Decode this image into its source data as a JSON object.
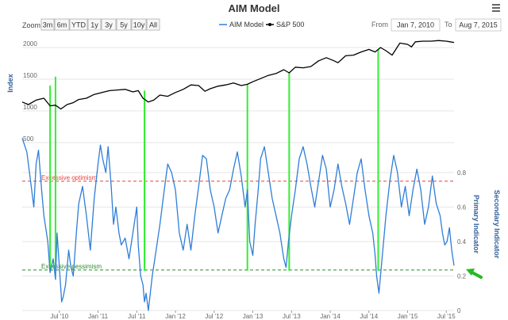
{
  "title": "AIM Model",
  "menu_icon": "hamburger-menu-icon",
  "zoom": {
    "label": "Zoom",
    "buttons": [
      "3m",
      "6m",
      "YTD",
      "1y",
      "3y",
      "5y",
      "10y",
      "All"
    ]
  },
  "range": {
    "from_label": "From",
    "from_value": "Jan 7, 2010",
    "to_label": "To",
    "to_value": "Aug 7, 2015"
  },
  "colors": {
    "aim": "#2f7ed8",
    "sp500": "#000000",
    "optimism": "#e8413c",
    "pessimism": "#2e8b2e",
    "signal": "#33ee33",
    "arrow": "#22bb22"
  },
  "chart_data": {
    "type": "line",
    "legend": {
      "placement": "top-center",
      "entries": [
        "AIM Model",
        "S&P 500"
      ]
    },
    "xlabels": [
      "Jul '10",
      "Jan '11",
      "Jul '11",
      "Jan '12",
      "Jul '12",
      "Jan '13",
      "Jul '13",
      "Jan '14",
      "Jul '14",
      "Jan '15",
      "Jul '15"
    ],
    "x_tick_values": [
      2010.5,
      2011.0,
      2011.5,
      2012.0,
      2012.5,
      2013.0,
      2013.5,
      2014.0,
      2014.5,
      2015.0,
      2015.5
    ],
    "xlim": [
      2010.02,
      2015.6
    ],
    "upper_panel": {
      "ylabel": "Index",
      "yticks": [
        500,
        1000,
        1500,
        2000
      ],
      "ylim": [
        500,
        2250
      ],
      "series": [
        {
          "name": "S&P 500",
          "x": [
            2010.02,
            2010.1,
            2010.2,
            2010.3,
            2010.38,
            2010.45,
            2010.52,
            2010.6,
            2010.68,
            2010.75,
            2010.85,
            2010.95,
            2011.05,
            2011.15,
            2011.25,
            2011.35,
            2011.45,
            2011.52,
            2011.58,
            2011.65,
            2011.72,
            2011.8,
            2011.9,
            2012.0,
            2012.1,
            2012.2,
            2012.3,
            2012.38,
            2012.45,
            2012.55,
            2012.65,
            2012.75,
            2012.85,
            2012.93,
            2013.0,
            2013.1,
            2013.2,
            2013.3,
            2013.4,
            2013.47,
            2013.55,
            2013.65,
            2013.75,
            2013.85,
            2013.95,
            2014.05,
            2014.1,
            2014.2,
            2014.3,
            2014.4,
            2014.5,
            2014.58,
            2014.65,
            2014.72,
            2014.8,
            2014.9,
            2015.0,
            2015.05,
            2015.1,
            2015.2,
            2015.3,
            2015.4,
            2015.5,
            2015.55,
            2015.6
          ],
          "values": [
            1140,
            1100,
            1170,
            1200,
            1080,
            1090,
            1030,
            1100,
            1130,
            1180,
            1200,
            1260,
            1290,
            1320,
            1330,
            1340,
            1300,
            1320,
            1200,
            1140,
            1170,
            1250,
            1230,
            1290,
            1340,
            1410,
            1400,
            1310,
            1350,
            1390,
            1410,
            1440,
            1400,
            1420,
            1460,
            1510,
            1560,
            1590,
            1650,
            1600,
            1690,
            1680,
            1700,
            1790,
            1840,
            1790,
            1760,
            1870,
            1880,
            1930,
            1970,
            1930,
            2000,
            1950,
            1880,
            2070,
            2050,
            2010,
            2090,
            2100,
            2100,
            2110,
            2100,
            2090,
            2080
          ]
        }
      ]
    },
    "lower_panel": {
      "ylabel": "Secondary Indicator",
      "ylabel2": "Primary Indicator",
      "yticks": [
        0,
        0.2,
        0.4,
        0.6,
        0.8
      ],
      "ylim": [
        0,
        1.02
      ],
      "series": [
        {
          "name": "AIM Model",
          "x": [
            2010.02,
            2010.08,
            2010.12,
            2010.17,
            2010.2,
            2010.23,
            2010.27,
            2010.3,
            2010.35,
            2010.38,
            2010.42,
            2010.45,
            2010.47,
            2010.5,
            2010.53,
            2010.55,
            2010.58,
            2010.62,
            2010.65,
            2010.68,
            2010.72,
            2010.75,
            2010.8,
            2010.85,
            2010.9,
            2010.95,
            2011.0,
            2011.03,
            2011.06,
            2011.1,
            2011.13,
            2011.17,
            2011.2,
            2011.23,
            2011.27,
            2011.3,
            2011.35,
            2011.4,
            2011.45,
            2011.5,
            2011.52,
            2011.55,
            2011.58,
            2011.6,
            2011.62,
            2011.65,
            2011.7,
            2011.75,
            2011.8,
            2011.85,
            2011.9,
            2011.95,
            2012.0,
            2012.05,
            2012.1,
            2012.15,
            2012.2,
            2012.25,
            2012.3,
            2012.35,
            2012.4,
            2012.45,
            2012.5,
            2012.55,
            2012.6,
            2012.65,
            2012.7,
            2012.75,
            2012.8,
            2012.85,
            2012.9,
            2012.93,
            2012.96,
            2013.0,
            2013.03,
            2013.07,
            2013.1,
            2013.15,
            2013.2,
            2013.25,
            2013.3,
            2013.35,
            2013.4,
            2013.43,
            2013.46,
            2013.5,
            2013.55,
            2013.6,
            2013.65,
            2013.7,
            2013.75,
            2013.8,
            2013.85,
            2013.9,
            2013.95,
            2014.0,
            2014.05,
            2014.1,
            2014.15,
            2014.2,
            2014.25,
            2014.3,
            2014.35,
            2014.4,
            2014.45,
            2014.5,
            2014.55,
            2014.58,
            2014.6,
            2014.63,
            2014.67,
            2014.72,
            2014.77,
            2014.82,
            2014.87,
            2014.92,
            2014.97,
            2015.02,
            2015.07,
            2015.12,
            2015.17,
            2015.22,
            2015.27,
            2015.32,
            2015.37,
            2015.42,
            2015.45,
            2015.48,
            2015.51,
            2015.54,
            2015.57,
            2015.6
          ],
          "values": [
            1.0,
            0.92,
            0.78,
            0.6,
            0.85,
            0.93,
            0.7,
            0.55,
            0.4,
            0.22,
            0.3,
            0.18,
            0.45,
            0.25,
            0.05,
            0.08,
            0.15,
            0.35,
            0.25,
            0.2,
            0.45,
            0.62,
            0.72,
            0.55,
            0.35,
            0.65,
            0.85,
            0.96,
            0.88,
            0.8,
            0.95,
            0.72,
            0.5,
            0.6,
            0.45,
            0.38,
            0.42,
            0.3,
            0.45,
            0.6,
            0.38,
            0.2,
            0.15,
            0.05,
            0.1,
            0.0,
            0.2,
            0.35,
            0.5,
            0.68,
            0.85,
            0.8,
            0.7,
            0.45,
            0.35,
            0.5,
            0.35,
            0.55,
            0.72,
            0.9,
            0.88,
            0.7,
            0.6,
            0.45,
            0.55,
            0.65,
            0.7,
            0.82,
            0.92,
            0.78,
            0.6,
            0.7,
            0.4,
            0.32,
            0.5,
            0.7,
            0.88,
            0.95,
            0.8,
            0.65,
            0.55,
            0.45,
            0.3,
            0.25,
            0.4,
            0.55,
            0.7,
            0.88,
            0.95,
            0.85,
            0.72,
            0.6,
            0.75,
            0.9,
            0.82,
            0.6,
            0.7,
            0.85,
            0.72,
            0.62,
            0.5,
            0.65,
            0.8,
            0.88,
            0.7,
            0.55,
            0.45,
            0.32,
            0.2,
            0.1,
            0.3,
            0.55,
            0.75,
            0.9,
            0.8,
            0.6,
            0.72,
            0.55,
            0.7,
            0.82,
            0.7,
            0.5,
            0.6,
            0.78,
            0.62,
            0.55,
            0.45,
            0.38,
            0.4,
            0.48,
            0.35,
            0.26
          ]
        }
      ],
      "thresholds": [
        {
          "label": "Excessive optimism",
          "value": 0.75
        },
        {
          "label": "Excessive pessimism",
          "value": 0.235
        }
      ],
      "signal_lines": [
        {
          "x": 2010.38,
          "top_index": 1400
        },
        {
          "x": 2010.45,
          "top_index": 1540
        },
        {
          "x": 2011.6,
          "top_index": 1320
        },
        {
          "x": 2012.93,
          "top_index": 1420
        },
        {
          "x": 2013.47,
          "top_index": 1600
        },
        {
          "x": 2014.62,
          "top_index": 1970
        }
      ]
    }
  }
}
